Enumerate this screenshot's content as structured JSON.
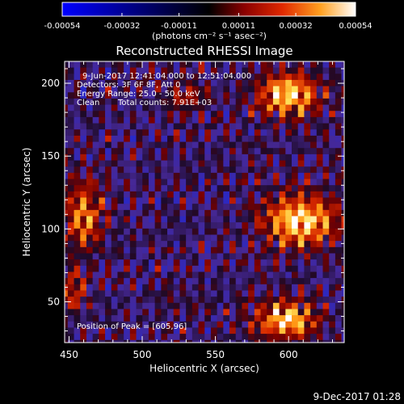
{
  "chart_data": {
    "type": "heatmap",
    "title": "Reconstructed RHESSI Image",
    "xlabel": "Heliocentric X (arcsec)",
    "ylabel": "Heliocentric Y (arcsec)",
    "xlim": [
      447,
      638
    ],
    "ylim": [
      22,
      215
    ],
    "x_ticks": [
      450,
      500,
      550,
      600
    ],
    "y_ticks": [
      50,
      100,
      150,
      200
    ],
    "colorbar": {
      "min": -0.00054,
      "max": 0.00054,
      "tick_values": [
        -0.00054,
        -0.00032,
        -0.00011,
        0.00011,
        0.00032,
        0.00054
      ],
      "tick_labels": [
        "-0.00054",
        "-0.00032",
        "-0.00011",
        "0.00011",
        "0.00032",
        "0.00054"
      ],
      "unit_label": "(photons cm⁻² s⁻¹ asec⁻²)"
    },
    "annotations": [
      "9-Jun-2017 12:41:04.000 to 12:51:04.000",
      "Detectors: 3F 6F 8F, Att 0",
      "Energy Range: 25.0 - 50.0 keV",
      "Clean",
      "Total counts: 7.91E+03"
    ],
    "peak_label": "Position of Peak = [605,96]",
    "peak_position": [
      605,
      96
    ],
    "sources": [
      {
        "x": 600,
        "y": 193,
        "amplitude": 0.00052,
        "sx": 14,
        "sy": 10
      },
      {
        "x": 608,
        "y": 106,
        "amplitude": 0.00054,
        "sx": 17,
        "sy": 12
      },
      {
        "x": 598,
        "y": 38,
        "amplitude": 0.00048,
        "sx": 15,
        "sy": 9
      },
      {
        "x": 460,
        "y": 110,
        "amplitude": 0.00036,
        "sx": 9,
        "sy": 16
      },
      {
        "x": 453,
        "y": 58,
        "amplitude": 0.00028,
        "sx": 6,
        "sy": 10
      },
      {
        "x": 530,
        "y": 193,
        "amplitude": 0.0002,
        "sx": 10,
        "sy": 7
      }
    ]
  },
  "footer_timestamp": "9-Dec-2017 01:28"
}
